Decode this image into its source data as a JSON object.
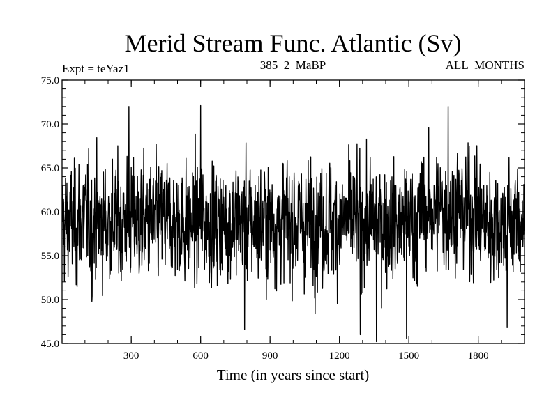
{
  "chart_data": {
    "type": "line",
    "title": "Merid Stream Func. Atlantic (Sv)",
    "subtitle_left": "Expt = teYaz1",
    "subtitle_center": "385_2_MaBP",
    "subtitle_right": "ALL_MONTHS",
    "xlabel": "Time (in years since start)",
    "ylabel": "",
    "xlim": [
      1,
      2000
    ],
    "ylim": [
      45.0,
      75.0
    ],
    "xticks": [
      300,
      600,
      900,
      1200,
      1500,
      1800
    ],
    "yticks": [
      "45.0",
      "50.0",
      "55.0",
      "60.0",
      "65.0",
      "70.0",
      "75.0"
    ],
    "grid": false,
    "series": [
      {
        "color": "#000000",
        "n_points": 2000,
        "x_start": 1,
        "x_step": 1,
        "mean": 58.8,
        "std": 3.2,
        "min": 45.2,
        "max": 72.1,
        "extremes": [
          {
            "x": 130,
            "y": 49.8
          },
          {
            "x": 290,
            "y": 72.0
          },
          {
            "x": 600,
            "y": 72.1
          },
          {
            "x": 790,
            "y": 46.6
          },
          {
            "x": 1290,
            "y": 46.0
          },
          {
            "x": 1360,
            "y": 45.2
          },
          {
            "x": 1490,
            "y": 45.6
          },
          {
            "x": 1670,
            "y": 72.0
          },
          {
            "x": 1925,
            "y": 46.8
          }
        ]
      }
    ]
  }
}
